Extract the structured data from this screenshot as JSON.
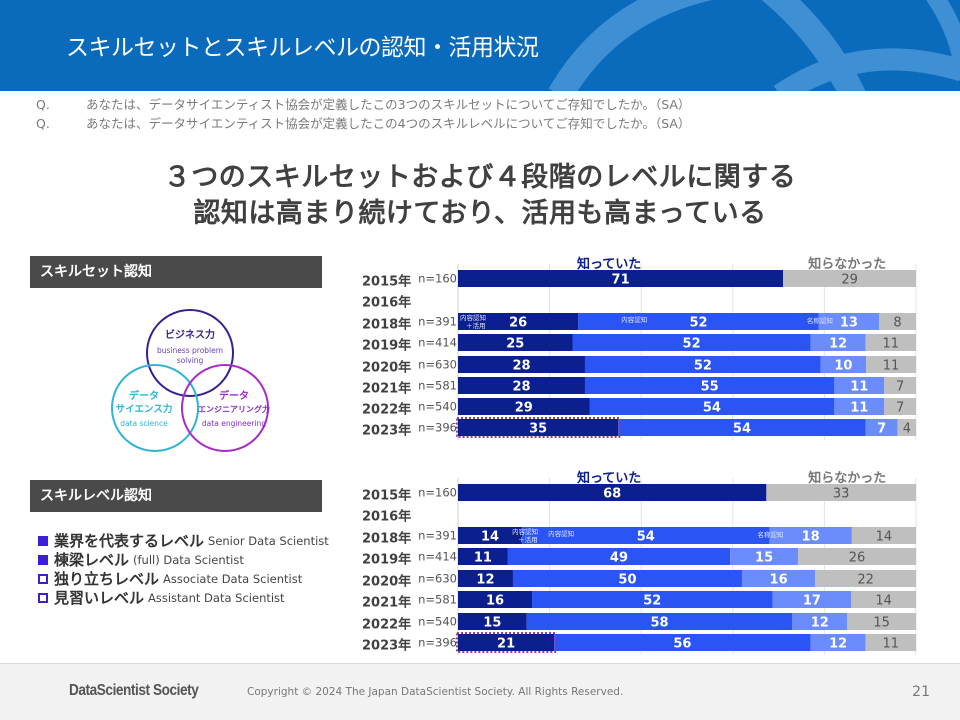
{
  "header": {
    "title": "スキルセットとスキルレベルの認知・活用状況"
  },
  "questions": [
    {
      "mark": "Q.",
      "text": "あなたは、データサイエンティスト協会が定義したこの3つのスキルセットについてご存知でしたか。（SA）"
    },
    {
      "mark": "Q.",
      "text": "あなたは、データサイエンティスト協会が定義したこの4つのスキルレベルについてご存知でしたか。（SA）"
    }
  ],
  "headline": {
    "line1": "３つのスキルセットおよび４段階のレベルに関する",
    "line2": "認知は高まり続けており、活用も高まっている"
  },
  "skillset": {
    "label": "スキルセット認知",
    "venn": [
      {
        "jp": "ビジネス力",
        "en1": "business problem",
        "en2": "solving",
        "color": "#3a1f8f"
      },
      {
        "jp1": "データ",
        "jp2": "サイエンス力",
        "en1": "data science",
        "color": "#2fb3d6"
      },
      {
        "jp1": "データ",
        "jp2": "エンジニアリング力",
        "en1": "data engineering",
        "color": "#a72bc8"
      }
    ]
  },
  "skilllevel": {
    "label": "スキルレベル認知",
    "levels": [
      {
        "jp": "業界を代表するレベル",
        "en": "Senior Data Scientist",
        "style": "filled"
      },
      {
        "jp": "棟梁レベル",
        "en": "(full) Data Scientist",
        "style": "filled"
      },
      {
        "jp": "独り立ちレベル",
        "en": "Associate Data Scientist",
        "style": "open"
      },
      {
        "jp": "見習いレベル",
        "en": "Assistant Data Scientist",
        "style": "open"
      }
    ]
  },
  "colors": {
    "header_bg": "#0a6bbd",
    "known_use": "#0b1f8f",
    "known_content": "#2b54f5",
    "known_name": "#6b8cfb",
    "unknown": "#bfbfbf",
    "highlight_border": "#9b3e8e"
  },
  "chart_data": [
    {
      "type": "bar",
      "orientation": "horizontal-stacked-100",
      "title": "スキルセット認知",
      "header_known": "知っていた",
      "header_unknown": "知らなかった",
      "segment_labels": [
        "内容認知\n＋活用",
        "内容認知",
        "名称認知",
        "知らなかった"
      ],
      "xlim": [
        0,
        100
      ],
      "grid": true,
      "rows": [
        {
          "year": "2015年",
          "n": "n=160",
          "values": [
            71,
            29
          ],
          "mode": "known-unknown"
        },
        {
          "year": "2016年",
          "n": "",
          "values": [],
          "mode": "empty"
        },
        {
          "year": "2018年",
          "n": "n=391",
          "values": [
            26,
            52,
            13,
            8
          ],
          "mode": "detail",
          "segment_captions": true
        },
        {
          "year": "2019年",
          "n": "n=414",
          "values": [
            25,
            52,
            12,
            11
          ],
          "mode": "detail"
        },
        {
          "year": "2020年",
          "n": "n=630",
          "values": [
            28,
            52,
            10,
            11
          ],
          "mode": "detail"
        },
        {
          "year": "2021年",
          "n": "n=581",
          "values": [
            28,
            55,
            11,
            7
          ],
          "mode": "detail"
        },
        {
          "year": "2022年",
          "n": "n=540",
          "values": [
            29,
            54,
            11,
            7
          ],
          "mode": "detail"
        },
        {
          "year": "2023年",
          "n": "n=396",
          "values": [
            35,
            54,
            7,
            4
          ],
          "mode": "detail",
          "highlight_first": true
        }
      ]
    },
    {
      "type": "bar",
      "orientation": "horizontal-stacked-100",
      "title": "スキルレベル認知",
      "header_known": "知っていた",
      "header_unknown": "知らなかった",
      "segment_labels": [
        "内容認知\n＋活用",
        "内容認知",
        "名称認知",
        "知らなかった"
      ],
      "xlim": [
        0,
        100
      ],
      "grid": true,
      "rows": [
        {
          "year": "2015年",
          "n": "n=160",
          "values": [
            68,
            33
          ],
          "mode": "known-unknown"
        },
        {
          "year": "2016年",
          "n": "",
          "values": [],
          "mode": "empty"
        },
        {
          "year": "2018年",
          "n": "n=391",
          "values": [
            14,
            54,
            18,
            14
          ],
          "mode": "detail",
          "segment_captions": true
        },
        {
          "year": "2019年",
          "n": "n=414",
          "values": [
            11,
            49,
            15,
            26
          ],
          "mode": "detail"
        },
        {
          "year": "2020年",
          "n": "n=630",
          "values": [
            12,
            50,
            16,
            22
          ],
          "mode": "detail"
        },
        {
          "year": "2021年",
          "n": "n=581",
          "values": [
            16,
            52,
            17,
            14
          ],
          "mode": "detail"
        },
        {
          "year": "2022年",
          "n": "n=540",
          "values": [
            15,
            58,
            12,
            15
          ],
          "mode": "detail"
        },
        {
          "year": "2023年",
          "n": "n=396",
          "values": [
            21,
            56,
            12,
            11
          ],
          "mode": "detail",
          "highlight_first": true
        }
      ]
    }
  ],
  "footer": {
    "brand": "DataScientist Society",
    "copyright": "Copyright © 2024  The Japan DataScientist Society. All Rights Reserved.",
    "page": "21"
  }
}
